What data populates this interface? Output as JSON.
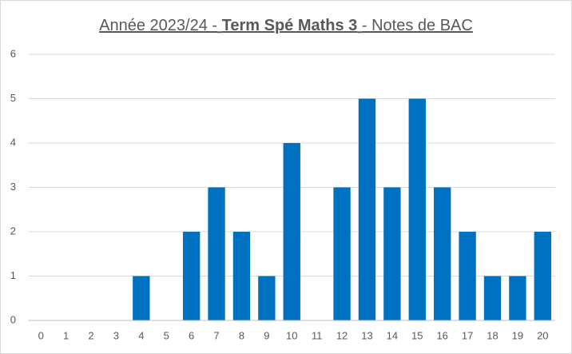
{
  "chart_data": {
    "type": "bar",
    "title_parts": [
      "Année 2023/24 -",
      "Term Spé Maths 3",
      "- Notes de BAC"
    ],
    "categories": [
      0,
      1,
      2,
      3,
      4,
      5,
      6,
      7,
      8,
      9,
      10,
      11,
      12,
      13,
      14,
      15,
      16,
      17,
      18,
      19,
      20
    ],
    "values": [
      0,
      0,
      0,
      0,
      1,
      0,
      2,
      3,
      2,
      1,
      4,
      0,
      3,
      5,
      3,
      5,
      3,
      2,
      1,
      1,
      2
    ],
    "color": "#0070c0",
    "ylim": [
      0,
      6
    ],
    "yticks": [
      0,
      1,
      2,
      3,
      4,
      5,
      6
    ],
    "grid": true
  }
}
